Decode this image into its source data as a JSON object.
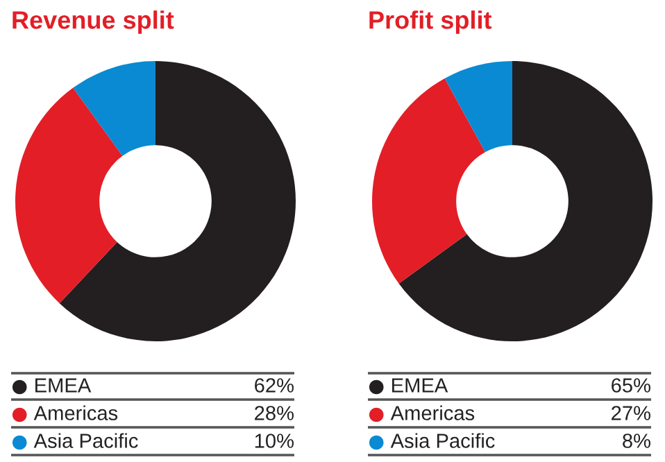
{
  "chart_data": [
    {
      "type": "donut",
      "title": "Revenue split",
      "categories": [
        "EMEA",
        "Americas",
        "Asia Pacific"
      ],
      "values": [
        62,
        28,
        10
      ],
      "colors": [
        "#231f20",
        "#e31e26",
        "#0a8ad2"
      ],
      "value_labels": [
        "62%",
        "28%",
        "10%"
      ],
      "legend": "bottom"
    },
    {
      "type": "donut",
      "title": "Profit split",
      "categories": [
        "EMEA",
        "Americas",
        "Asia Pacific"
      ],
      "values": [
        65,
        27,
        8
      ],
      "colors": [
        "#231f20",
        "#e31e26",
        "#0a8ad2"
      ],
      "value_labels": [
        "65%",
        "27%",
        "8%"
      ],
      "legend": "bottom"
    }
  ]
}
